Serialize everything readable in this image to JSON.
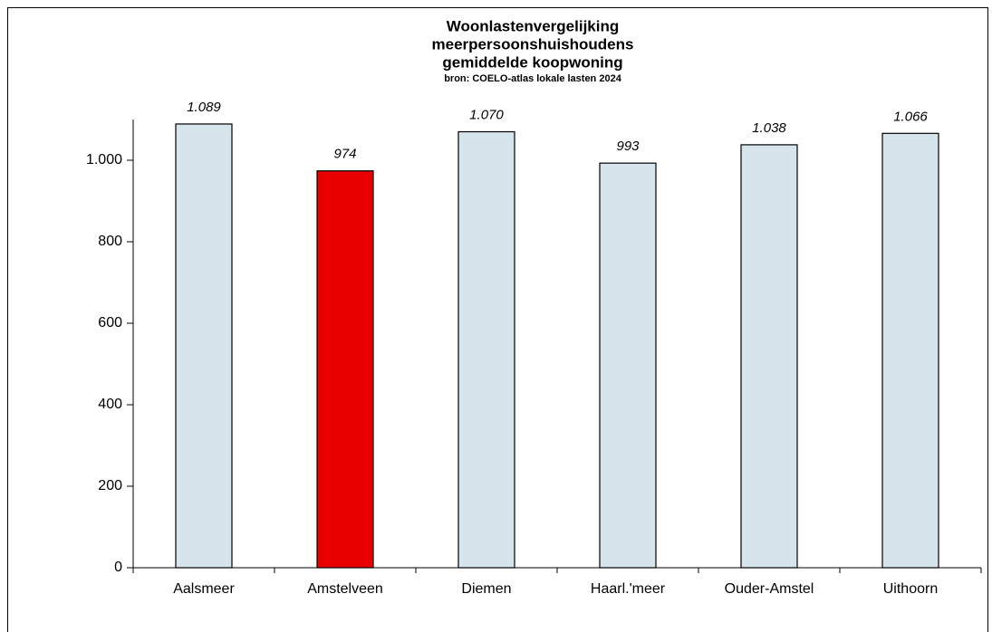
{
  "chart_data": {
    "type": "bar",
    "title": [
      "Woonlastenvergelijking",
      "meerpersoonshuishoudens",
      "gemiddelde koopwoning"
    ],
    "subtitle": "bron: COELO-atlas lokale lasten 2024",
    "categories": [
      "Aalsmeer",
      "Amstelveen",
      "Diemen",
      "Haarl.'meer",
      "Ouder-Amstel",
      "Uithoorn"
    ],
    "values": [
      1089,
      974,
      1070,
      993,
      1038,
      1066
    ],
    "value_labels": [
      "1.089",
      "974",
      "1.070",
      "993",
      "1.038",
      "1.066"
    ],
    "colors": [
      "#d6e4ec",
      "#e80000",
      "#d6e4ec",
      "#d6e4ec",
      "#d6e4ec",
      "#d6e4ec"
    ],
    "ylim": [
      0,
      1100
    ],
    "yticks": [
      0,
      200,
      400,
      600,
      800,
      {
        "value": 1000,
        "label": "1.000"
      }
    ],
    "grid": false
  }
}
